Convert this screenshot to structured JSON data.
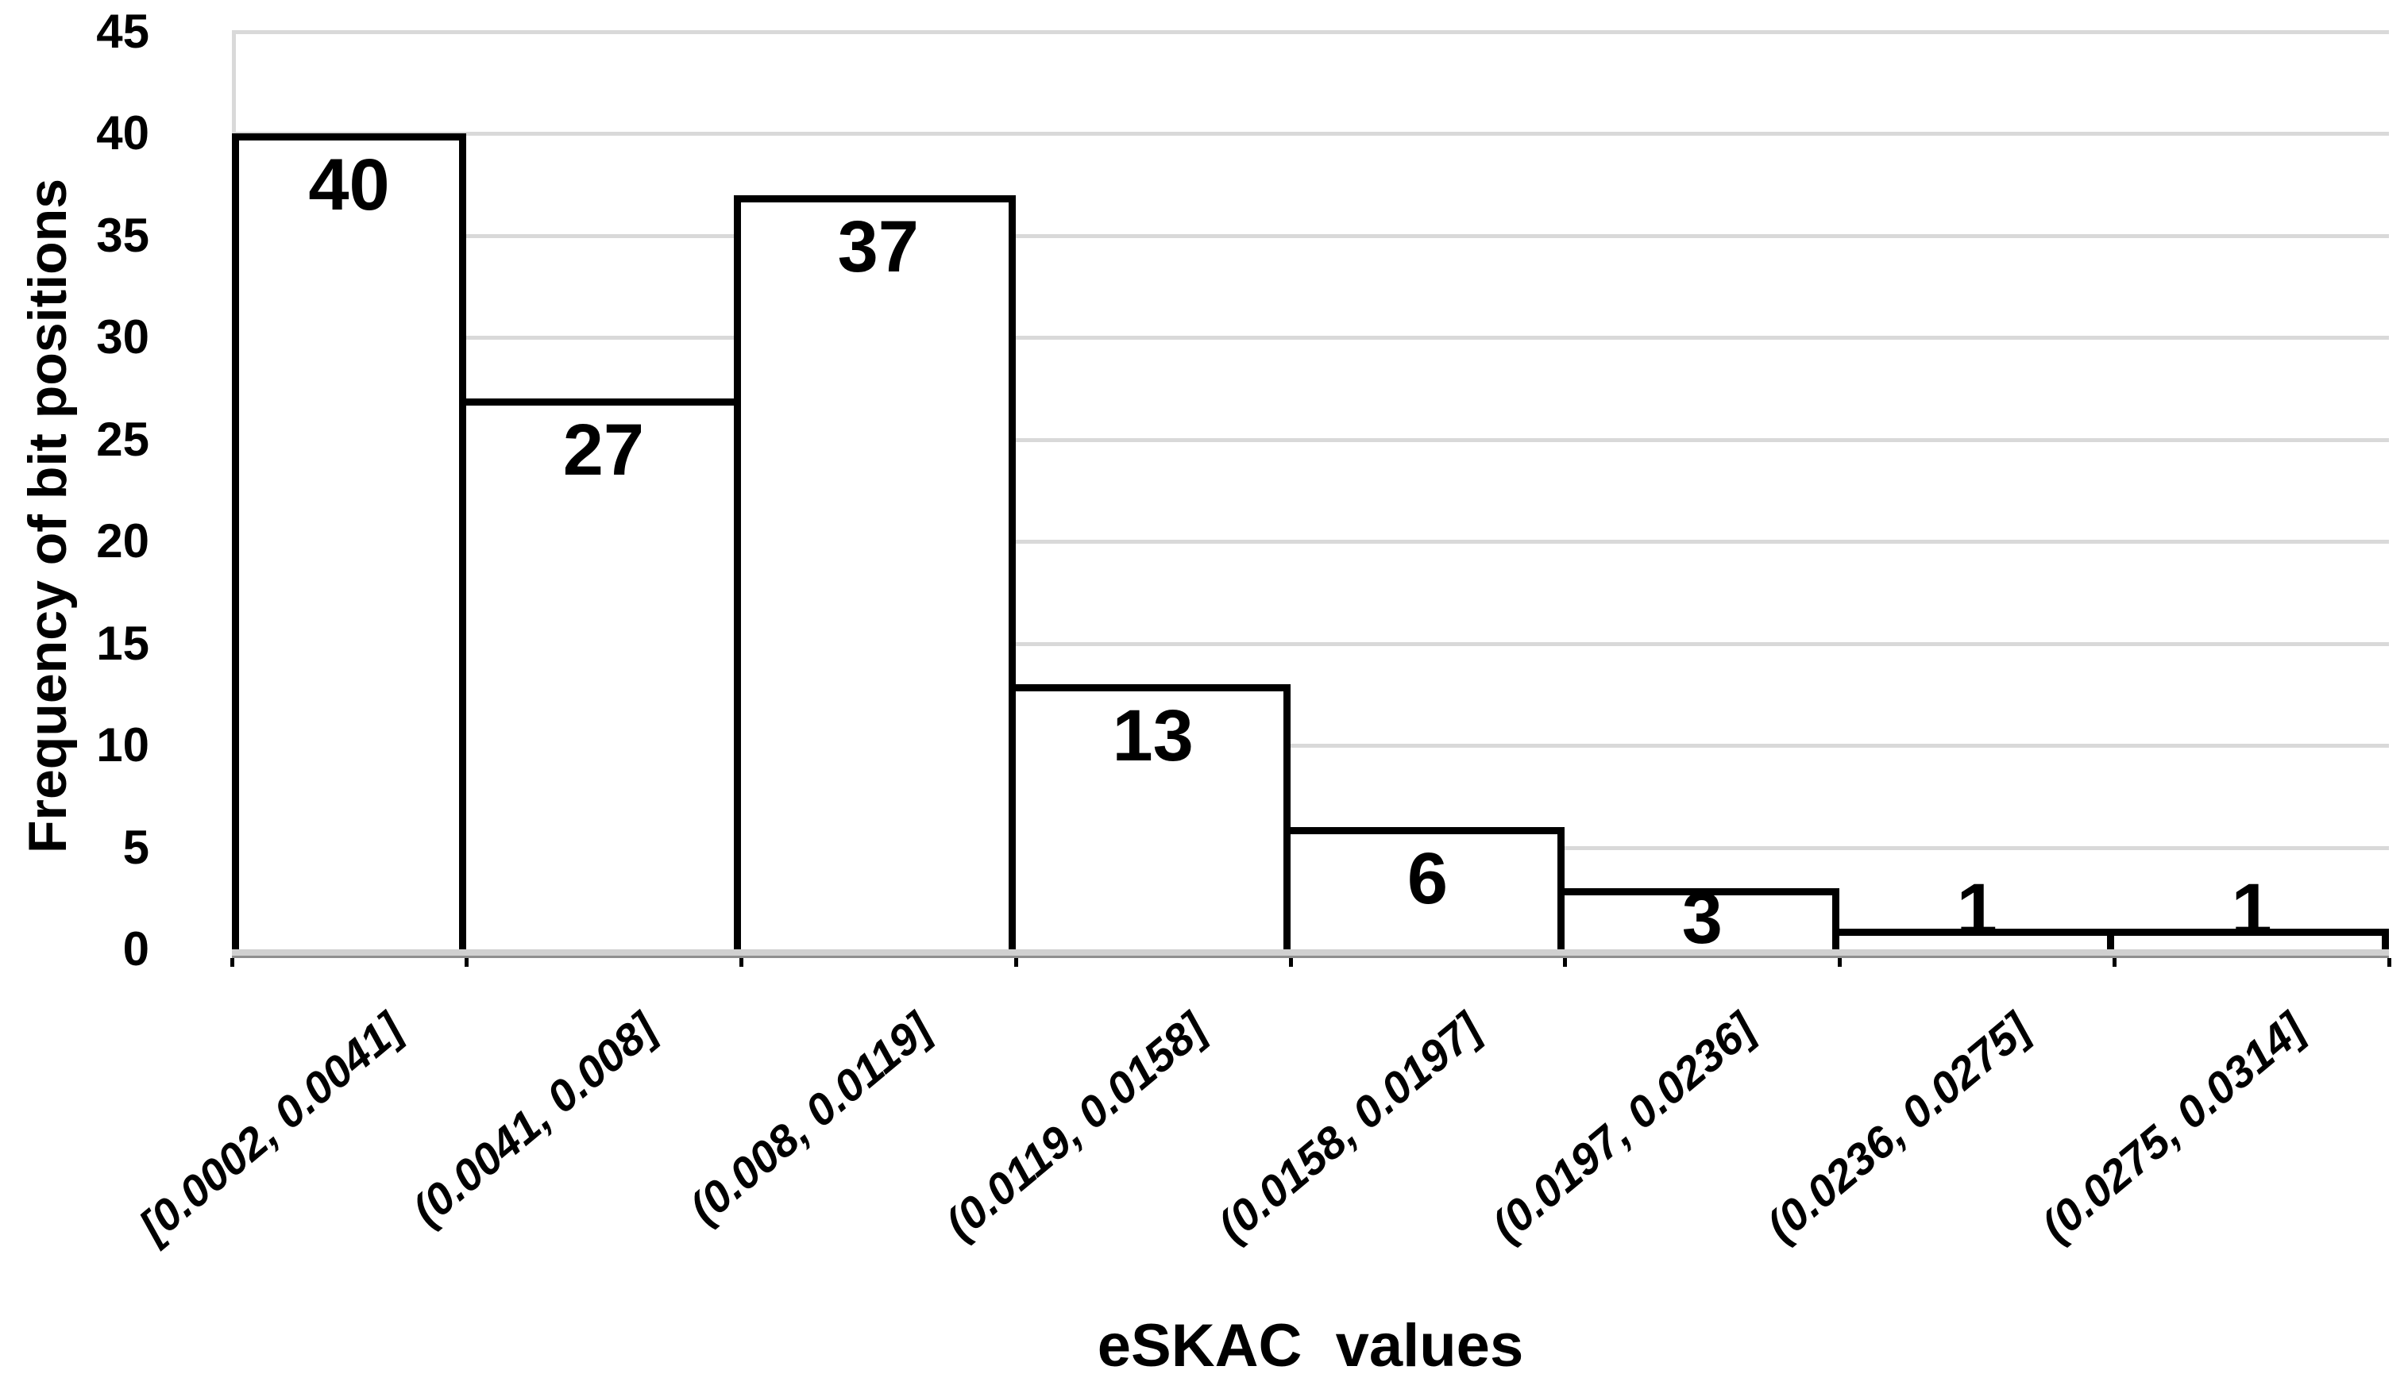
{
  "chart_data": {
    "type": "bar",
    "subtype": "histogram",
    "title": "",
    "categories": [
      "[0.0002, 0.0041]",
      "(0.0041, 0.008]",
      "(0.008, 0.0119]",
      "(0.0119, 0.0158]",
      "(0.0158, 0.0197]",
      "(0.0197, 0.0236]",
      "(0.0236, 0.0275]",
      "(0.0275, 0.0314]"
    ],
    "values": [
      40,
      27,
      37,
      13,
      6,
      3,
      1,
      1
    ],
    "data_labels": [
      "40",
      "27",
      "37",
      "13",
      "6",
      "3",
      "1",
      "1"
    ],
    "xlabel": "eSKAC  values",
    "ylabel": "Frequency of bit positions",
    "y_ticks": [
      0,
      5,
      10,
      15,
      20,
      25,
      30,
      35,
      40,
      45
    ],
    "ylim": [
      0,
      45
    ],
    "grid": true,
    "legend": "none",
    "colors": {
      "bar_fill": "#ffffff",
      "bar_border": "#000000",
      "gridline": "#d9d9d9",
      "axis_line": "#d0d0d0",
      "axis_line_edge": "#8f8f8f",
      "text": "#000000"
    }
  }
}
